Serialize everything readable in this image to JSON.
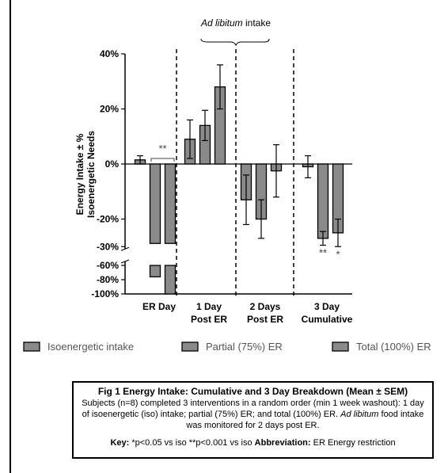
{
  "chart_data": {
    "type": "bar",
    "ylabel": "Energy Intake ± % Isoenergetic Needs",
    "ylabel_lines": [
      "Energy Intake ± %",
      "Isoenergetic Needs"
    ],
    "ylim": [
      -100,
      40
    ],
    "axis_break": [
      -30,
      -60
    ],
    "upper_ticks": [
      "40%",
      "20%",
      "0%",
      "-20%",
      "-30%"
    ],
    "upper_tick_values": [
      40,
      20,
      0,
      -20,
      -30
    ],
    "lower_ticks": [
      "-60%",
      "-80%",
      "-100%"
    ],
    "lower_tick_values": [
      -60,
      -80,
      -100
    ],
    "groups": [
      {
        "label_lines": [
          "ER Day"
        ],
        "bars": [
          {
            "series": "Isoenergetic intake",
            "value": 1.5,
            "err": 1.5
          },
          {
            "series": "Partial (75%) ER",
            "value": -76,
            "err": 0
          },
          {
            "series": "Total (100%) ER",
            "value": -100,
            "err": 0
          }
        ]
      },
      {
        "label_lines": [
          "1 Day",
          "Post ER"
        ],
        "bars": [
          {
            "series": "Isoenergetic intake",
            "value": 9,
            "err": 7
          },
          {
            "series": "Partial (75%) ER",
            "value": 14,
            "err": 5.5
          },
          {
            "series": "Total (100%) ER",
            "value": 28,
            "err": 8
          }
        ]
      },
      {
        "label_lines": [
          "2 Days",
          "Post ER"
        ],
        "bars": [
          {
            "series": "Isoenergetic intake",
            "value": -13,
            "err": 9
          },
          {
            "series": "Partial (75%) ER",
            "value": -20,
            "err": 7
          },
          {
            "series": "Total (100%) ER",
            "value": -2.5,
            "err": 9.5
          }
        ]
      },
      {
        "label_lines": [
          "3 Day",
          "Cumulative"
        ],
        "bars": [
          {
            "series": "Isoenergetic intake",
            "value": -1,
            "err": 4
          },
          {
            "series": "Partial (75%) ER",
            "value": -27,
            "err": 2.5
          },
          {
            "series": "Total (100%) ER",
            "value": -25,
            "err": 5
          }
        ]
      }
    ],
    "series": [
      {
        "name": "Isoenergetic intake",
        "color": "#8a8a8a"
      },
      {
        "name": "Partial (75%) ER",
        "color": "#8a8a8a"
      },
      {
        "name": "Total (100%) ER",
        "color": "#8a8a8a"
      }
    ],
    "significance": [
      {
        "text": "**",
        "group": 0,
        "bracket": true
      },
      {
        "text": "**",
        "group": 3,
        "bar": 1
      },
      {
        "text": "*",
        "group": 3,
        "bar": 2
      }
    ],
    "annotation": {
      "italic": "Ad libitum",
      "rest": " intake"
    },
    "grid": false,
    "legend_position": "bottom"
  },
  "caption": {
    "title": "Fig 1 Energy Intake: Cumulative and 3 Day Breakdown (Mean ± SEM)",
    "body_1": "Subjects (n=8) completed 3 interventions in a random order (min 1 week washout): 1 day of isoenergetic (iso) intake; partial (75%) ER; and total (100%) ER. ",
    "body_italic": "Ad libitum",
    "body_2": " food intake was monitored for 2 days post ER.",
    "key_label": "Key:",
    "key_text": " *p<0.05 vs iso **p<0.001 vs iso ",
    "abbr_label": "Abbreviation:",
    "abbr_text": " ER Energy restriction"
  },
  "colors": {
    "bar": "#8a8a8a",
    "stroke": "#000000",
    "divider": "#000000"
  }
}
